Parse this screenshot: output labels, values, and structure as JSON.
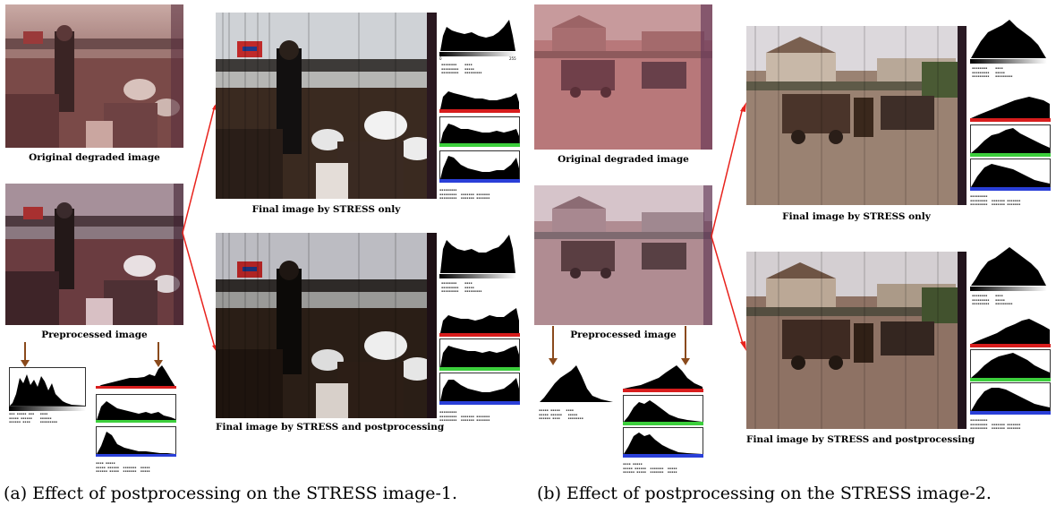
{
  "labels": {
    "a_original": "Original degraded image",
    "a_preprocessed": "Preprocessed image",
    "a_stress_only": "Final image by STRESS only",
    "a_stress_post": "Final image by STRESS and postprocessing",
    "b_original": "Original degraded image",
    "b_preprocessed": "Preprocessed image",
    "b_stress_only": "Final image by STRESS only",
    "b_stress_post": "Final image by STRESS and postprocessing"
  },
  "captions": {
    "a": "(a) Effect of postprocessing on the STRESS image-1.",
    "b": "(b) Effect of postprocessing on the STRESS image-2."
  },
  "histogram_axis": {
    "min": "0",
    "max": "255"
  },
  "colors": {
    "arrow_red": "#e8231d",
    "arrow_brown": "#8a4a1c",
    "red_channel": "#d81d1d",
    "green_channel": "#3ccf3c",
    "blue_channel": "#2a3fd8"
  }
}
